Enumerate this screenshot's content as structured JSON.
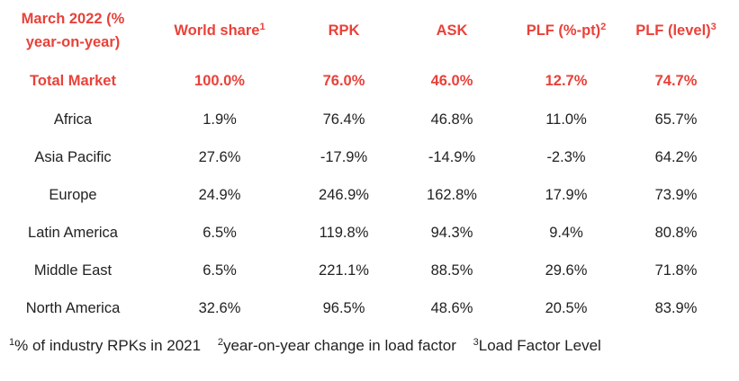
{
  "table": {
    "headers": [
      {
        "label": "March 2022 (% year-on-year)",
        "sup": ""
      },
      {
        "label": "World share",
        "sup": "1"
      },
      {
        "label": "RPK",
        "sup": ""
      },
      {
        "label": "ASK",
        "sup": ""
      },
      {
        "label": "PLF (%-pt)",
        "sup": "2"
      },
      {
        "label": "PLF (level)",
        "sup": "3"
      }
    ],
    "rows": [
      [
        "Total Market",
        "100.0%",
        "76.0%",
        "46.0%",
        "12.7%",
        "74.7%"
      ],
      [
        "Africa",
        "1.9%",
        "76.4%",
        "46.8%",
        "11.0%",
        "65.7%"
      ],
      [
        "Asia Pacific",
        "27.6%",
        "-17.9%",
        "-14.9%",
        "-2.3%",
        "64.2%"
      ],
      [
        "Europe",
        "24.9%",
        "246.9%",
        "162.8%",
        "17.9%",
        "73.9%"
      ],
      [
        "Latin America",
        "6.5%",
        "119.8%",
        "94.3%",
        "9.4%",
        "80.8%"
      ],
      [
        "Middle East",
        "6.5%",
        "221.1%",
        "88.5%",
        "29.6%",
        "71.8%"
      ],
      [
        "North America",
        "32.6%",
        "96.5%",
        "48.6%",
        "20.5%",
        "83.9%"
      ]
    ]
  },
  "footnotes": [
    {
      "sup": "1",
      "text": "% of industry RPKs in 2021"
    },
    {
      "sup": "2",
      "text": "year-on-year change in load factor"
    },
    {
      "sup": "3",
      "text": "Load Factor Level"
    }
  ],
  "colors": {
    "accent": "#e8423a",
    "text": "#222222",
    "background": "#ffffff"
  }
}
